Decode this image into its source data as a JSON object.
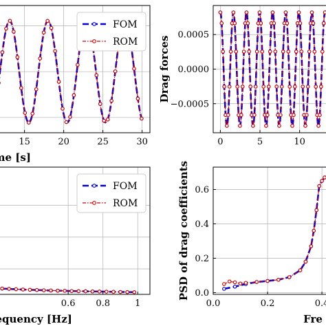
{
  "chart_data": [
    {
      "type": "line",
      "panel": "top-left",
      "xlabel": "time [s]",
      "ylabel": "",
      "xlim": [
        11.7,
        31.0
      ],
      "ylim": [
        -1.2,
        1.3
      ],
      "xticks": [
        15,
        20,
        25,
        30
      ],
      "legend": {
        "placement": "top-right",
        "entries": [
          "FOM",
          "ROM"
        ]
      },
      "grid": true,
      "series": [
        {
          "name": "FOM",
          "color": "#0000cc",
          "style": "dashed",
          "marker": "circle-open"
        },
        {
          "name": "ROM",
          "color": "#cc0000",
          "style": "dash-dot",
          "marker": "circle-open"
        }
      ],
      "signal": {
        "kind": "sinusoid",
        "period": 4.9,
        "phase_peak_t": 13.1,
        "amplitude": 1.0,
        "t_start": 11.7,
        "t_end": 30.0,
        "sample_step": 0.48
      }
    },
    {
      "type": "line",
      "panel": "top-right",
      "xlabel": "",
      "ylabel": "Drag forces",
      "xlim": [
        -0.9,
        13.5
      ],
      "ylim": [
        -0.00092,
        0.00092
      ],
      "xticks": [
        0,
        5,
        10
      ],
      "yticks": [
        -0.0005,
        0.0,
        0.0005
      ],
      "ytick_labels": [
        "−0.0005",
        "0.0000",
        "0.0005"
      ],
      "grid": true,
      "series": [
        {
          "name": "FOM",
          "color": "#0000cc",
          "style": "dashed",
          "marker": "circle-open"
        },
        {
          "name": "ROM",
          "color": "#cc0000",
          "style": "dash-dot",
          "marker": "circle-open"
        }
      ],
      "signal": {
        "kind": "sinusoid",
        "period": 1.65,
        "phase_peak_t": 1.65,
        "amplitude": 0.00082,
        "t_start": 0.0,
        "t_end": 13.2,
        "sample_step": 0.165
      }
    },
    {
      "type": "line",
      "panel": "bottom-left",
      "xlabel": "Frequency [Hz]",
      "ylabel": "",
      "xlim": [
        0.2,
        1.07
      ],
      "ylim": [
        0.0,
        1.0
      ],
      "xticks": [
        0.6,
        0.8,
        1.0
      ],
      "legend": {
        "placement": "top-right",
        "entries": [
          "FOM",
          "ROM"
        ]
      },
      "grid": true,
      "series": [
        {
          "name": "FOM",
          "color": "#0000cc",
          "style": "dashed",
          "marker": "circle-open",
          "x": [
            0.22,
            0.26,
            0.3,
            0.34,
            0.38,
            0.42,
            0.46,
            0.5,
            0.54,
            0.58,
            0.62,
            0.66,
            0.7,
            0.74,
            0.78,
            0.82,
            0.86,
            0.9,
            0.94,
            0.98
          ],
          "y": [
            0.045,
            0.043,
            0.04,
            0.038,
            0.036,
            0.034,
            0.032,
            0.03,
            0.029,
            0.028,
            0.026,
            0.025,
            0.024,
            0.023,
            0.022,
            0.021,
            0.02,
            0.019,
            0.018,
            0.017
          ]
        },
        {
          "name": "ROM",
          "color": "#cc0000",
          "style": "dash-dot",
          "marker": "circle-open",
          "x": [
            0.22,
            0.26,
            0.3,
            0.34,
            0.38,
            0.42,
            0.46,
            0.5,
            0.54,
            0.58,
            0.62,
            0.66,
            0.7,
            0.74,
            0.78,
            0.82,
            0.86,
            0.9,
            0.94,
            0.98
          ],
          "y": [
            0.046,
            0.043,
            0.041,
            0.038,
            0.036,
            0.034,
            0.032,
            0.031,
            0.029,
            0.028,
            0.026,
            0.025,
            0.024,
            0.023,
            0.022,
            0.021,
            0.02,
            0.019,
            0.018,
            0.017
          ]
        }
      ]
    },
    {
      "type": "line",
      "panel": "bottom-right",
      "xlabel": "Fre",
      "ylabel": "PSD of drag coefficients",
      "xlim": [
        0.0,
        0.42
      ],
      "ylim": [
        -0.01,
        0.73
      ],
      "xticks": [
        0.0,
        0.2,
        0.4
      ],
      "xtick_labels": [
        "0.0",
        "0.2",
        "0.4"
      ],
      "yticks": [
        0.0,
        0.2,
        0.4,
        0.6
      ],
      "ytick_labels": [
        "0.0",
        "0.2",
        "0.4",
        "0.6"
      ],
      "grid": true,
      "series": [
        {
          "name": "FOM",
          "color": "#0000cc",
          "style": "dashed",
          "marker": "circle-open",
          "x": [
            0.04,
            0.08,
            0.12,
            0.16,
            0.2,
            0.24,
            0.28,
            0.32,
            0.34,
            0.36,
            0.37,
            0.38,
            0.39,
            0.4,
            0.41
          ],
          "y": [
            0.022,
            0.035,
            0.05,
            0.062,
            0.068,
            0.075,
            0.09,
            0.13,
            0.18,
            0.27,
            0.36,
            0.48,
            0.62,
            0.65,
            0.67
          ]
        },
        {
          "name": "ROM",
          "color": "#cc0000",
          "style": "dash-dot",
          "marker": "circle-open",
          "x": [
            0.04,
            0.06,
            0.08,
            0.1,
            0.12,
            0.16,
            0.2,
            0.24,
            0.28,
            0.32,
            0.34,
            0.36,
            0.37,
            0.38,
            0.39,
            0.4,
            0.41
          ],
          "y": [
            0.05,
            0.065,
            0.06,
            0.053,
            0.057,
            0.062,
            0.068,
            0.075,
            0.09,
            0.13,
            0.18,
            0.27,
            0.36,
            0.48,
            0.62,
            0.65,
            0.67
          ]
        }
      ]
    }
  ]
}
